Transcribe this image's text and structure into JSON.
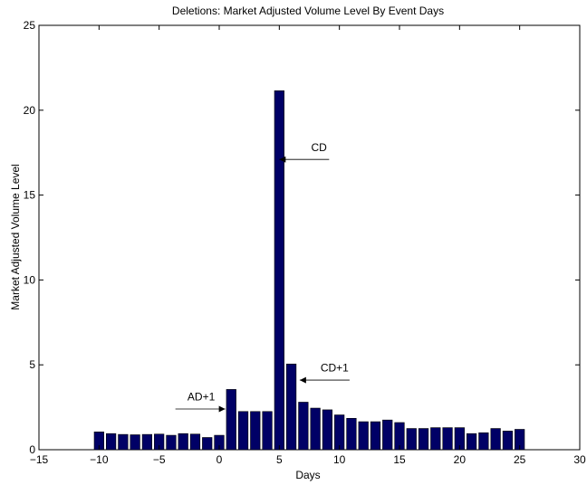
{
  "chart_data": {
    "type": "bar",
    "title": "Deletions: Market Adjusted Volume Level By Event Days",
    "xlabel": "Days",
    "ylabel": "Market Adjusted Volume Level",
    "xlim": [
      -15,
      30
    ],
    "ylim": [
      0,
      25
    ],
    "xticks": [
      -15,
      -10,
      -5,
      0,
      5,
      10,
      15,
      20,
      25,
      30
    ],
    "yticks": [
      0,
      5,
      10,
      15,
      20,
      25
    ],
    "grid": false,
    "bar_color": "#000066",
    "x": [
      -10,
      -9,
      -8,
      -7,
      -6,
      -5,
      -4,
      -3,
      -2,
      -1,
      0,
      1,
      2,
      3,
      4,
      5,
      6,
      7,
      8,
      9,
      10,
      11,
      12,
      13,
      14,
      15,
      16,
      17,
      18,
      19,
      20,
      21,
      22,
      23,
      24,
      25
    ],
    "values": [
      1.05,
      0.95,
      0.9,
      0.88,
      0.9,
      0.92,
      0.85,
      0.95,
      0.92,
      0.72,
      0.85,
      3.55,
      2.25,
      2.25,
      2.25,
      21.15,
      5.05,
      2.8,
      2.45,
      2.35,
      2.05,
      1.85,
      1.65,
      1.65,
      1.75,
      1.6,
      1.25,
      1.25,
      1.3,
      1.3,
      1.3,
      0.95,
      1.0,
      1.25,
      1.1,
      1.2
    ],
    "annotations": [
      {
        "text": "CD",
        "x": 5,
        "y": 17.1,
        "text_x": 8.3,
        "text_y": 17.6
      },
      {
        "text": "CD+1",
        "x": 6.7,
        "y": 4.1,
        "text_x": 9.6,
        "text_y": 4.6
      },
      {
        "text": "AD+1",
        "x": 0.5,
        "y": 2.4,
        "text_x": -1.5,
        "text_y": 2.9
      }
    ]
  }
}
